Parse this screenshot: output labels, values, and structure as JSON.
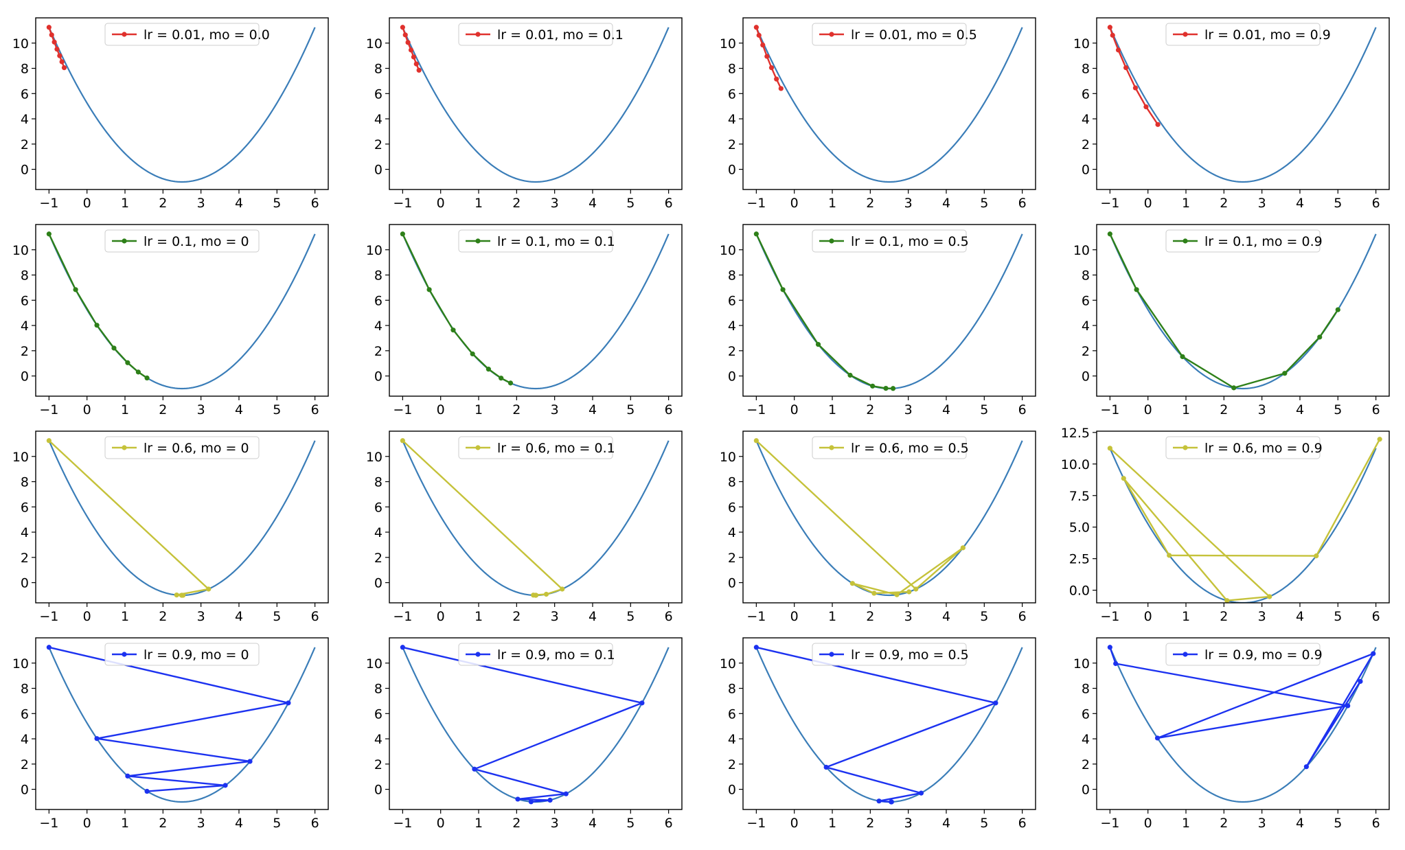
{
  "chart_data": [
    {
      "type": "line",
      "legend": "lr = 0.01, mo = 0.0",
      "color": "#e0312d",
      "x": [
        -1,
        -0.93,
        -0.86,
        -0.79,
        -0.72,
        -0.66,
        -0.6
      ],
      "y": [
        11.25,
        10.65,
        10.08,
        9.52,
        9.0,
        8.52,
        8.05
      ]
    },
    {
      "type": "line",
      "legend": "lr = 0.01, mo = 0.1",
      "color": "#e0312d",
      "x": [
        -1,
        -0.93,
        -0.86,
        -0.78,
        -0.71,
        -0.64,
        -0.57
      ],
      "y": [
        11.25,
        10.65,
        10.05,
        9.45,
        8.9,
        8.35,
        7.85
      ]
    },
    {
      "type": "line",
      "legend": "lr = 0.01, mo = 0.5",
      "color": "#e0312d",
      "x": [
        -1,
        -0.93,
        -0.83,
        -0.72,
        -0.6,
        -0.47,
        -0.35
      ],
      "y": [
        11.25,
        10.62,
        9.85,
        8.95,
        8.05,
        7.15,
        6.4
      ]
    },
    {
      "type": "line",
      "legend": "lr = 0.01, mo = 0.9",
      "color": "#e0312d",
      "x": [
        -1,
        -0.93,
        -0.78,
        -0.58,
        -0.33,
        -0.05,
        0.26
      ],
      "y": [
        11.25,
        10.62,
        9.45,
        8.05,
        6.45,
        4.95,
        3.55
      ]
    },
    {
      "type": "line",
      "legend": "lr = 0.1, mo = 0",
      "color": "#2e8019",
      "x": [
        -1,
        -0.3,
        0.26,
        0.71,
        1.07,
        1.35,
        1.58
      ],
      "y": [
        11.25,
        6.84,
        4.02,
        2.21,
        1.05,
        0.31,
        -0.16
      ]
    },
    {
      "type": "line",
      "legend": "lr = 0.1, mo = 0.1",
      "color": "#2e8019",
      "x": [
        -1,
        -0.3,
        0.33,
        0.84,
        1.26,
        1.59,
        1.84
      ],
      "y": [
        11.25,
        6.84,
        3.64,
        1.75,
        0.54,
        -0.17,
        -0.56
      ]
    },
    {
      "type": "line",
      "legend": "lr = 0.1, mo = 0.5",
      "color": "#2e8019",
      "x": [
        -1,
        -0.3,
        0.63,
        1.47,
        2.06,
        2.41,
        2.6
      ],
      "y": [
        11.25,
        6.84,
        2.5,
        0.06,
        -0.8,
        -0.98,
        -0.99
      ]
    },
    {
      "type": "line",
      "legend": "lr = 0.1, mo = 0.9",
      "color": "#2e8019",
      "x": [
        -1,
        -0.3,
        0.91,
        2.26,
        3.6,
        4.52,
        5.0
      ],
      "y": [
        11.25,
        6.84,
        1.53,
        -0.94,
        0.21,
        3.08,
        5.25
      ]
    },
    {
      "type": "line",
      "legend": "lr = 0.6, mo = 0",
      "color": "#c5c23a",
      "x": [
        -1,
        3.2,
        2.36,
        2.53,
        2.49,
        2.5,
        2.5
      ],
      "y": [
        11.25,
        -0.51,
        -0.98,
        -1.0,
        -1.0,
        -1.0,
        -1.0
      ]
    },
    {
      "type": "line",
      "legend": "lr = 0.6, mo = 0.1",
      "color": "#c5c23a",
      "x": [
        -1,
        3.2,
        2.78,
        2.44,
        2.5,
        2.51,
        2.5
      ],
      "y": [
        11.25,
        -0.51,
        -0.92,
        -0.99,
        -1.0,
        -1.0,
        -1.0
      ]
    },
    {
      "type": "line",
      "legend": "lr = 0.6, mo = 0.5",
      "color": "#c5c23a",
      "x": [
        -1,
        3.2,
        4.44,
        2.7,
        1.53,
        2.1,
        3.02
      ],
      "y": [
        11.25,
        -0.51,
        2.76,
        -0.96,
        -0.06,
        -0.84,
        -0.73
      ]
    },
    {
      "type": "line",
      "legend": "lr = 0.6, mo = 0.9",
      "color": "#c5c23a",
      "x": [
        -1,
        3.2,
        2.08,
        -0.64,
        0.56,
        4.43,
        6.1
      ],
      "y": [
        11.25,
        -0.51,
        -0.82,
        8.86,
        2.76,
        2.72,
        11.96
      ]
    },
    {
      "type": "line",
      "legend": "lr = 0.9, mo = 0",
      "color": "#1c32f0",
      "x": [
        -1,
        5.3,
        0.26,
        4.29,
        1.07,
        3.64,
        1.58
      ],
      "y": [
        11.25,
        6.84,
        4.02,
        2.21,
        1.05,
        0.31,
        -0.16
      ]
    },
    {
      "type": "line",
      "legend": "lr = 0.9, mo = 0.1",
      "color": "#1c32f0",
      "x": [
        -1,
        5.3,
        0.89,
        3.3,
        2.03,
        2.88,
        2.38
      ],
      "y": [
        11.25,
        6.84,
        1.6,
        -0.36,
        -0.78,
        -0.86,
        -0.99
      ]
    },
    {
      "type": "line",
      "legend": "lr = 0.9, mo = 0.5",
      "color": "#1c32f0",
      "x": [
        -1,
        5.3,
        0.84,
        3.34,
        2.23,
        2.55,
        2.56
      ],
      "y": [
        11.25,
        6.84,
        1.75,
        -0.3,
        -0.93,
        -1.0,
        -1.0
      ]
    },
    {
      "type": "line",
      "legend": "lr = 0.9, mo = 0.9",
      "color": "#1c32f0",
      "x": [
        -1,
        -0.85,
        5.26,
        0.25,
        5.93,
        4.17,
        5.59
      ],
      "y": [
        11.25,
        9.96,
        6.62,
        4.06,
        10.75,
        1.79,
        8.55
      ]
    }
  ],
  "curve": {
    "color": "#3a7db8",
    "function": "(x-2.5)^2 - 1",
    "xlim": [
      -1.3,
      6.3
    ]
  },
  "axes": {
    "xticks": [
      -1,
      0,
      1,
      2,
      3,
      4,
      5,
      6
    ],
    "xtick_labels": [
      "−1",
      "0",
      "1",
      "2",
      "3",
      "4",
      "5",
      "6"
    ],
    "yticks": [
      0,
      2,
      4,
      6,
      8,
      10
    ],
    "yticks_wide": [
      0.0,
      2.5,
      5.0,
      7.5,
      10.0,
      12.5
    ],
    "ytick_labels_wide": [
      "0.0",
      "2.5",
      "5.0",
      "7.5",
      "10.0",
      "12.5"
    ],
    "ylim_default": [
      -1.6,
      12.0
    ],
    "ylim_wide": [
      -1.0,
      12.6
    ]
  }
}
